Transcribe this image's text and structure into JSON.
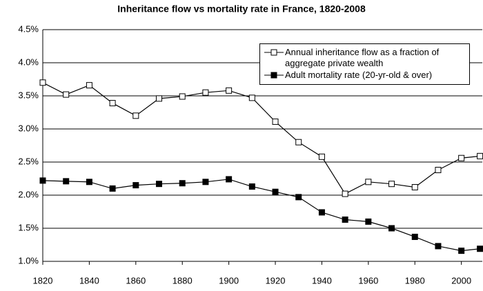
{
  "chart_data": {
    "type": "line",
    "title": "Inheritance flow vs mortality rate in France, 1820-2008",
    "x": [
      1820,
      1830,
      1840,
      1850,
      1860,
      1870,
      1880,
      1890,
      1900,
      1910,
      1920,
      1930,
      1940,
      1950,
      1960,
      1970,
      1980,
      1990,
      2000,
      2008
    ],
    "series": [
      {
        "name": "Annual inheritance flow as a fraction of aggregate private wealth",
        "color": "#000000",
        "marker": "open-square",
        "values": [
          3.7,
          3.52,
          3.66,
          3.39,
          3.2,
          3.46,
          3.49,
          3.55,
          3.58,
          3.47,
          3.11,
          2.8,
          2.58,
          2.02,
          2.2,
          2.17,
          2.12,
          2.38,
          2.56,
          2.59
        ]
      },
      {
        "name": "Adult mortality rate (20-yr-old & over)",
        "color": "#000000",
        "marker": "filled-square",
        "values": [
          2.22,
          2.21,
          2.2,
          2.1,
          2.15,
          2.17,
          2.18,
          2.2,
          2.24,
          2.13,
          2.05,
          1.97,
          1.74,
          1.63,
          1.6,
          1.5,
          1.37,
          1.23,
          1.16,
          1.19
        ]
      }
    ],
    "xlim": [
      1820,
      2009
    ],
    "xticks": [
      1820,
      1840,
      1860,
      1880,
      1900,
      1920,
      1940,
      1960,
      1980,
      2000
    ],
    "ylim": [
      1.0,
      4.5
    ],
    "yticks": [
      {
        "value": 1.0,
        "label": "1.0%"
      },
      {
        "value": 1.5,
        "label": "1.5%"
      },
      {
        "value": 2.0,
        "label": "2.0%"
      },
      {
        "value": 2.5,
        "label": "2.5%"
      },
      {
        "value": 3.0,
        "label": "3.0%"
      },
      {
        "value": 3.5,
        "label": "3.5%"
      },
      {
        "value": 4.0,
        "label": "4.0%"
      },
      {
        "value": 4.5,
        "label": "4.5%"
      }
    ],
    "grid": true,
    "legend": "upper right"
  }
}
